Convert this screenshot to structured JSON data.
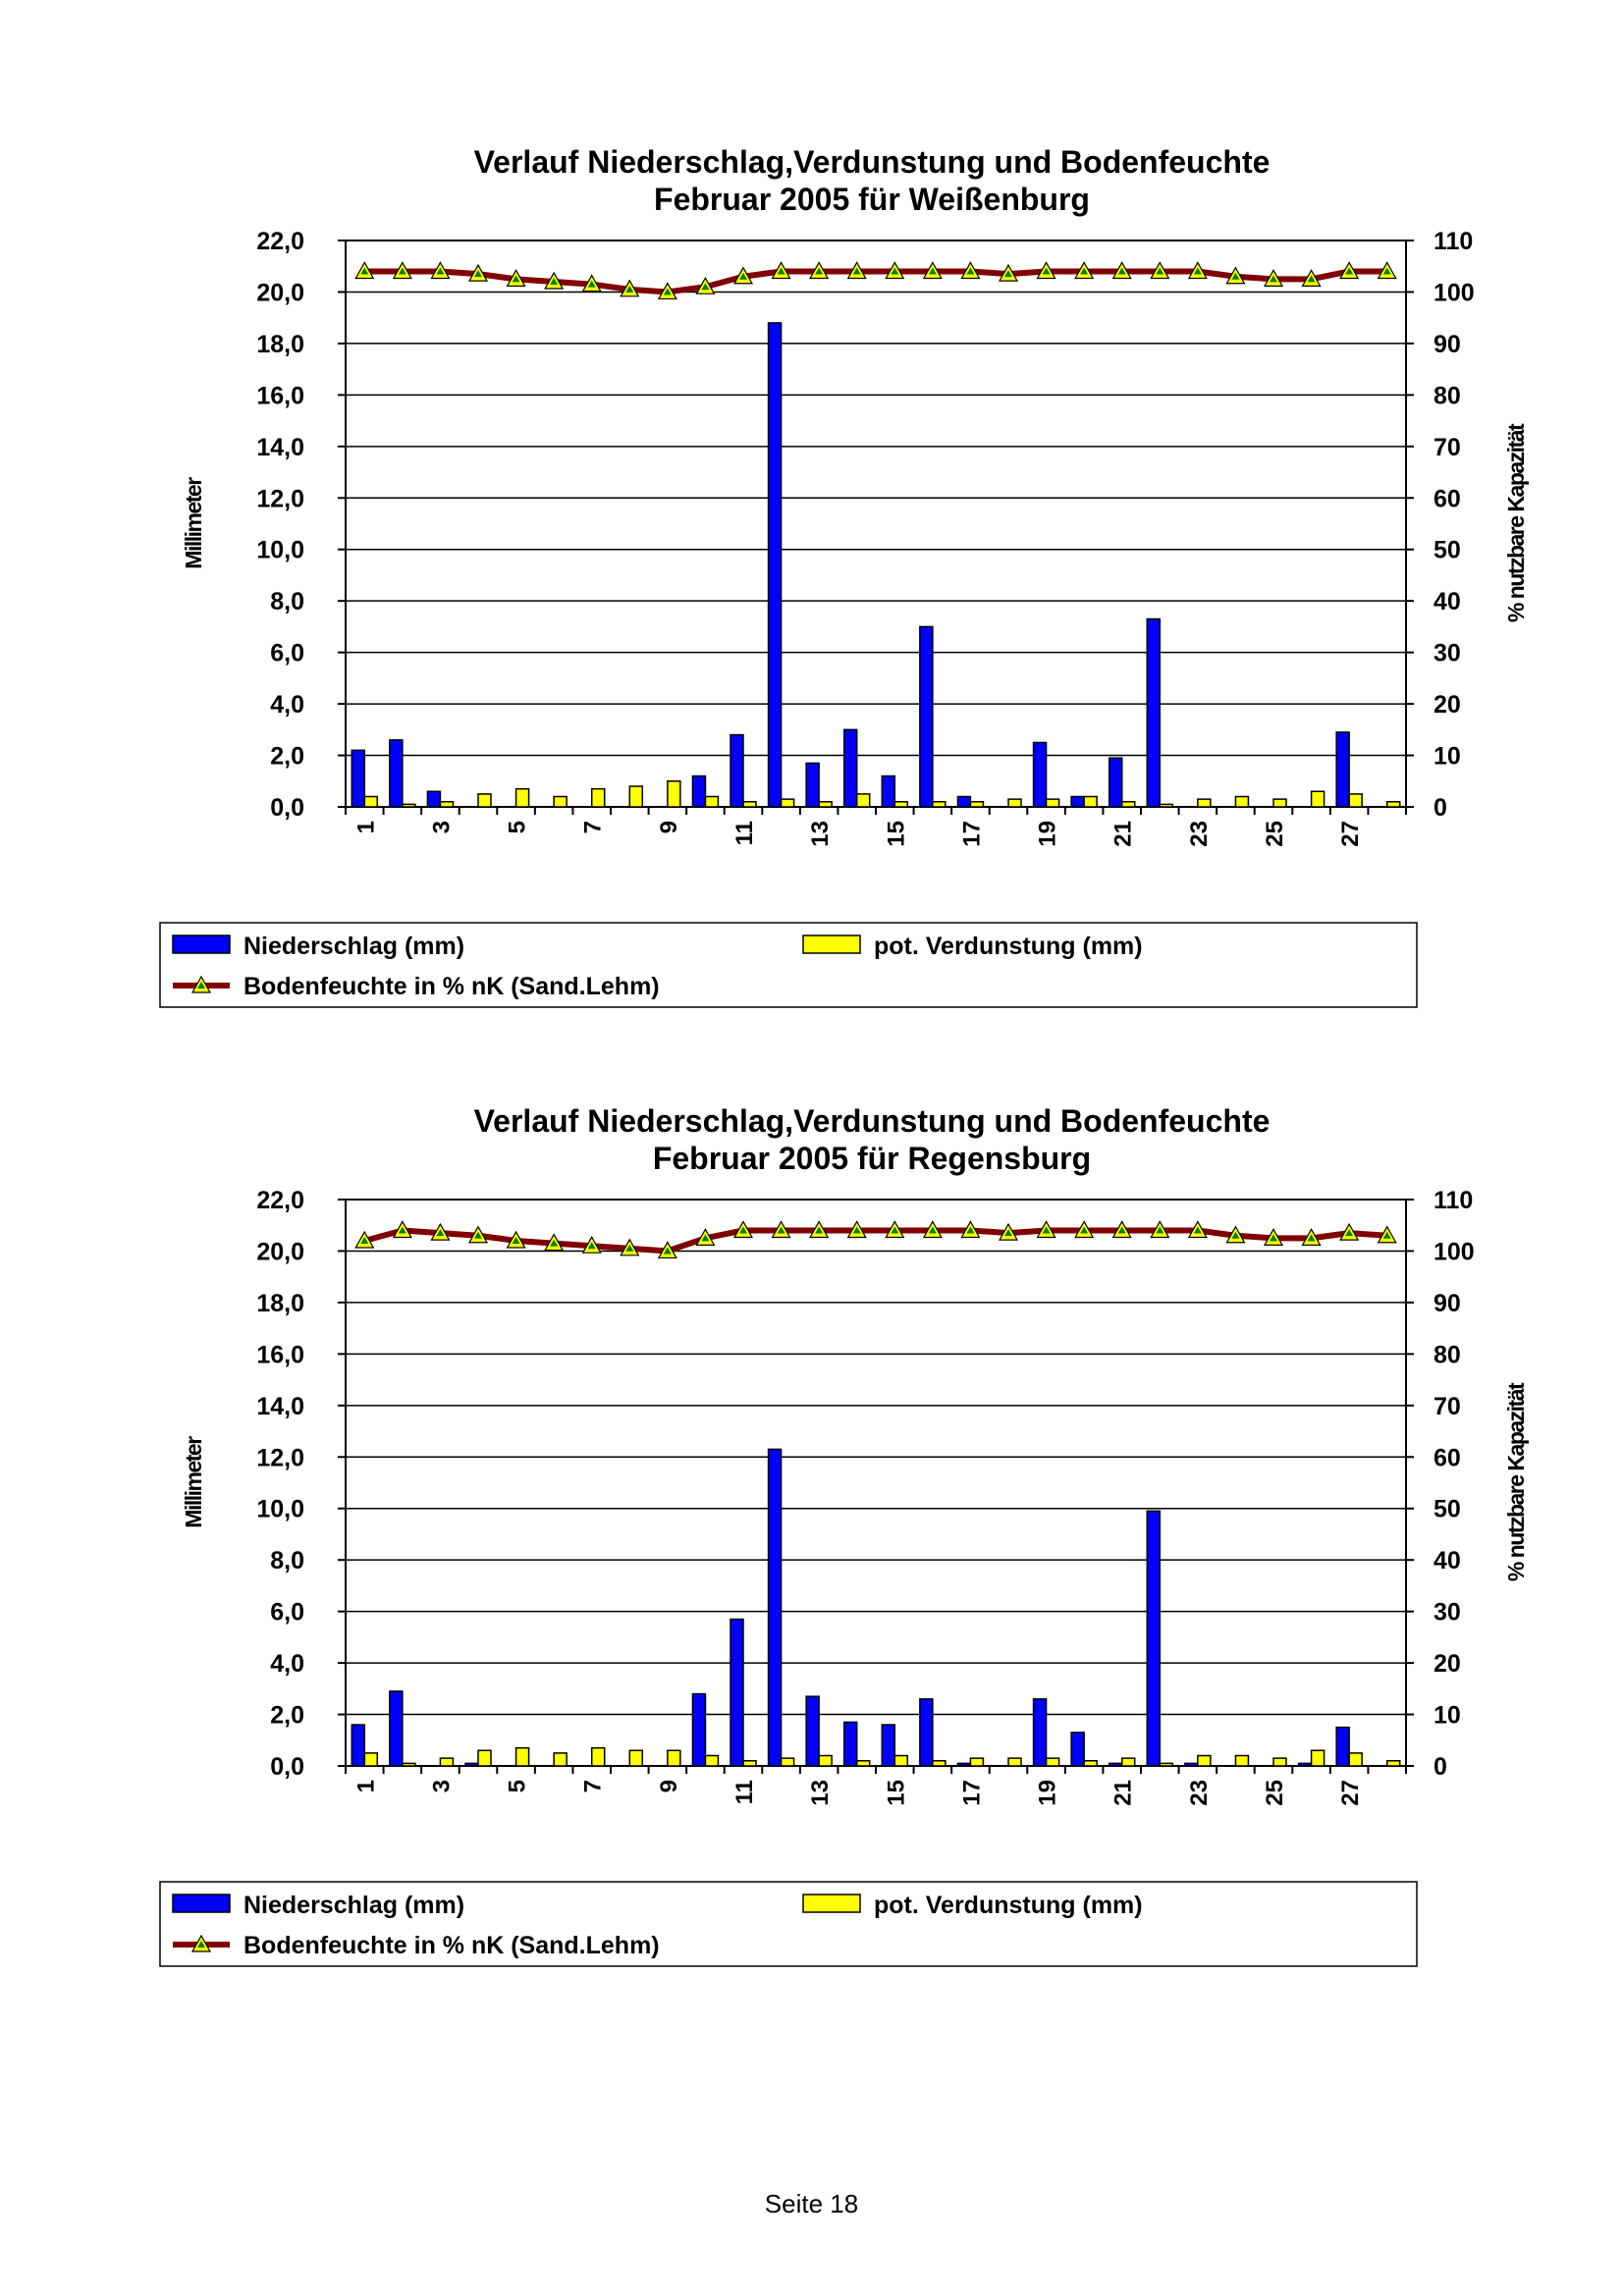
{
  "page": {
    "footer": "Seite 18"
  },
  "chart_data": [
    {
      "type": "bar",
      "title": [
        "Verlauf Niederschlag,Verdunstung und Bodenfeuchte",
        "Februar 2005 für Weißenburg"
      ],
      "ylabel": "Millimeter",
      "y2label": "% nutzbare Kapazität",
      "ylim": [
        0,
        22
      ],
      "y2lim": [
        0,
        110
      ],
      "y_ticks": [
        "0,0",
        "2,0",
        "4,0",
        "6,0",
        "8,0",
        "10,0",
        "12,0",
        "14,0",
        "16,0",
        "18,0",
        "20,0",
        "22,0"
      ],
      "y2_ticks": [
        "0",
        "10",
        "20",
        "30",
        "40",
        "50",
        "60",
        "70",
        "80",
        "90",
        "100",
        "110"
      ],
      "x_ticks": [
        "1",
        "3",
        "5",
        "7",
        "9",
        "11",
        "13",
        "15",
        "17",
        "19",
        "21",
        "23",
        "25",
        "27"
      ],
      "x_tick_values": [
        1,
        3,
        5,
        7,
        9,
        11,
        13,
        15,
        17,
        19,
        21,
        23,
        25,
        27
      ],
      "categories": [
        1,
        2,
        3,
        4,
        5,
        6,
        7,
        8,
        9,
        10,
        11,
        12,
        13,
        14,
        15,
        16,
        17,
        18,
        19,
        20,
        21,
        22,
        23,
        24,
        25,
        26,
        27,
        28
      ],
      "series": [
        {
          "name": "Niederschlag (mm)",
          "kind": "bar",
          "axis": "left",
          "color": "#0000ff",
          "values": [
            2.2,
            2.6,
            0.6,
            0,
            0,
            0,
            0,
            0,
            0,
            1.2,
            2.8,
            18.8,
            1.7,
            3.0,
            1.2,
            7.0,
            0.4,
            0,
            2.5,
            0.4,
            1.9,
            7.3,
            0,
            0,
            0,
            0,
            2.9,
            0
          ]
        },
        {
          "name": "pot. Verdunstung (mm)",
          "kind": "bar",
          "axis": "left",
          "color": "#ffff00",
          "values": [
            0.4,
            0.1,
            0.2,
            0.5,
            0.7,
            0.4,
            0.7,
            0.8,
            1.0,
            0.4,
            0.2,
            0.3,
            0.2,
            0.5,
            0.2,
            0.2,
            0.2,
            0.3,
            0.3,
            0.4,
            0.2,
            0.1,
            0.3,
            0.4,
            0.3,
            0.6,
            0.5,
            0.2
          ]
        },
        {
          "name": "Bodenfeuchte in % nK (Sand.Lehm)",
          "kind": "line",
          "axis": "right",
          "color": "#800000",
          "marker_color": "#ffff00",
          "values": [
            104,
            104,
            104,
            103.5,
            102.5,
            102,
            101.5,
            100.5,
            100,
            101,
            103,
            104,
            104,
            104,
            104,
            104,
            104,
            103.5,
            104,
            104,
            104,
            104,
            104,
            103,
            102.5,
            102.5,
            104,
            104
          ]
        }
      ]
    },
    {
      "type": "bar",
      "title": [
        "Verlauf Niederschlag,Verdunstung und Bodenfeuchte",
        "Februar 2005 für Regensburg"
      ],
      "ylabel": "Millimeter",
      "y2label": "% nutzbare Kapazität",
      "ylim": [
        0,
        22
      ],
      "y2lim": [
        0,
        110
      ],
      "y_ticks": [
        "0,0",
        "2,0",
        "4,0",
        "6,0",
        "8,0",
        "10,0",
        "12,0",
        "14,0",
        "16,0",
        "18,0",
        "20,0",
        "22,0"
      ],
      "y2_ticks": [
        "0",
        "10",
        "20",
        "30",
        "40",
        "50",
        "60",
        "70",
        "80",
        "90",
        "100",
        "110"
      ],
      "x_ticks": [
        "1",
        "3",
        "5",
        "7",
        "9",
        "11",
        "13",
        "15",
        "17",
        "19",
        "21",
        "23",
        "25",
        "27"
      ],
      "x_tick_values": [
        1,
        3,
        5,
        7,
        9,
        11,
        13,
        15,
        17,
        19,
        21,
        23,
        25,
        27
      ],
      "categories": [
        1,
        2,
        3,
        4,
        5,
        6,
        7,
        8,
        9,
        10,
        11,
        12,
        13,
        14,
        15,
        16,
        17,
        18,
        19,
        20,
        21,
        22,
        23,
        24,
        25,
        26,
        27,
        28
      ],
      "series": [
        {
          "name": "Niederschlag (mm)",
          "kind": "bar",
          "axis": "left",
          "color": "#0000ff",
          "values": [
            1.6,
            2.9,
            0,
            0.1,
            0,
            0,
            0,
            0,
            0,
            2.8,
            5.7,
            12.3,
            2.7,
            1.7,
            1.6,
            2.6,
            0.1,
            0,
            2.6,
            1.3,
            0.1,
            9.9,
            0.1,
            0,
            0,
            0.1,
            1.5,
            0
          ]
        },
        {
          "name": "pot. Verdunstung (mm)",
          "kind": "bar",
          "axis": "left",
          "color": "#ffff00",
          "values": [
            0.5,
            0.1,
            0.3,
            0.6,
            0.7,
            0.5,
            0.7,
            0.6,
            0.6,
            0.4,
            0.2,
            0.3,
            0.4,
            0.2,
            0.4,
            0.2,
            0.3,
            0.3,
            0.3,
            0.2,
            0.3,
            0.1,
            0.4,
            0.4,
            0.3,
            0.6,
            0.5,
            0.2
          ]
        },
        {
          "name": "Bodenfeuchte in % nK (Sand.Lehm)",
          "kind": "line",
          "axis": "right",
          "color": "#800000",
          "marker_color": "#ffff00",
          "values": [
            102,
            104,
            103.5,
            103,
            102,
            101.5,
            101,
            100.5,
            100,
            102.5,
            104,
            104,
            104,
            104,
            104,
            104,
            104,
            103.5,
            104,
            104,
            104,
            104,
            104,
            103,
            102.5,
            102.5,
            103.5,
            103
          ]
        }
      ]
    }
  ]
}
